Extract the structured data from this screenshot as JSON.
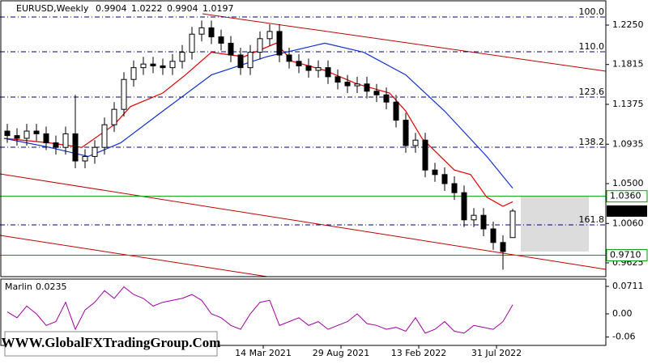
{
  "chart_data": {
    "type": "candlestick",
    "symbol": "EURUSD,Weekly",
    "ohlc_header": [
      0.9904,
      1.0222,
      0.9904,
      1.0197
    ],
    "xlim": [
      -1.25,
      185.75
    ],
    "xticks": [
      {
        "value": 80,
        "label": "14 Mar 2021"
      },
      {
        "value": 104,
        "label": "29 Aug 2021"
      },
      {
        "value": 128,
        "label": "13 Feb 2022"
      },
      {
        "value": 152,
        "label": "31 Jul 2022"
      }
    ],
    "ylim": [
      0.9473,
      1.2527
    ],
    "yticks": [
      {
        "value": 1.225,
        "label": "1.2250"
      },
      1.1815,
      1.1375,
      1.0935,
      {
        "value": 1.05,
        "label": "1.0500"
      },
      {
        "value": 1.006,
        "label": "1.0060"
      },
      0.9625
    ],
    "candles": {
      "x": [
        1,
        4,
        7,
        10,
        13,
        16,
        19,
        22,
        25,
        28,
        31,
        34,
        37,
        40,
        43,
        46,
        49,
        52,
        55,
        58,
        61,
        64,
        67,
        70,
        73,
        76,
        79,
        82,
        85,
        88,
        91,
        94,
        97,
        100,
        103,
        106,
        109,
        112,
        115,
        118,
        121,
        124,
        127,
        130,
        133,
        136,
        139,
        142,
        145,
        148,
        151,
        154,
        157
      ],
      "open": [
        1.108,
        1.103,
        1.1,
        1.108,
        1.105,
        1.095,
        1.09,
        1.105,
        1.075,
        1.08,
        1.09,
        1.115,
        1.132,
        1.165,
        1.178,
        1.182,
        1.18,
        1.178,
        1.185,
        1.195,
        1.215,
        1.222,
        1.212,
        1.205,
        1.192,
        1.178,
        1.195,
        1.21,
        1.218,
        1.192,
        1.185,
        1.18,
        1.175,
        1.178,
        1.168,
        1.162,
        1.158,
        1.16,
        1.152,
        1.148,
        1.14,
        1.12,
        1.092,
        1.098,
        1.065,
        1.06,
        1.05,
        1.04,
        1.01,
        1.015,
        1.0,
        0.985,
        0.9904
      ],
      "high": [
        1.116,
        1.111,
        1.116,
        1.116,
        1.113,
        1.103,
        1.113,
        1.148,
        1.088,
        1.098,
        1.123,
        1.14,
        1.173,
        1.186,
        1.19,
        1.19,
        1.188,
        1.193,
        1.203,
        1.223,
        1.23,
        1.23,
        1.22,
        1.213,
        1.2,
        1.203,
        1.218,
        1.226,
        1.226,
        1.2,
        1.193,
        1.188,
        1.186,
        1.186,
        1.176,
        1.17,
        1.168,
        1.168,
        1.16,
        1.156,
        1.148,
        1.128,
        1.106,
        1.106,
        1.073,
        1.068,
        1.058,
        1.048,
        1.023,
        1.023,
        1.008,
        0.993,
        1.0222
      ],
      "low": [
        1.095,
        1.092,
        1.092,
        1.097,
        1.087,
        1.082,
        1.082,
        1.067,
        1.067,
        1.072,
        1.082,
        1.107,
        1.124,
        1.157,
        1.17,
        1.172,
        1.17,
        1.17,
        1.177,
        1.187,
        1.207,
        1.204,
        1.197,
        1.184,
        1.17,
        1.17,
        1.187,
        1.202,
        1.184,
        1.177,
        1.172,
        1.167,
        1.167,
        1.16,
        1.154,
        1.15,
        1.15,
        1.144,
        1.14,
        1.132,
        1.112,
        1.084,
        1.084,
        1.057,
        1.052,
        1.042,
        1.032,
        1.002,
        1.002,
        0.992,
        0.977,
        0.955,
        0.9904
      ],
      "close": [
        1.103,
        1.1,
        1.108,
        1.105,
        1.095,
        1.09,
        1.105,
        1.075,
        1.08,
        1.09,
        1.115,
        1.132,
        1.165,
        1.178,
        1.182,
        1.18,
        1.178,
        1.185,
        1.195,
        1.215,
        1.222,
        1.212,
        1.205,
        1.192,
        1.178,
        1.195,
        1.21,
        1.218,
        1.192,
        1.185,
        1.18,
        1.175,
        1.178,
        1.168,
        1.162,
        1.158,
        1.16,
        1.152,
        1.148,
        1.14,
        1.12,
        1.092,
        1.098,
        1.065,
        1.06,
        1.05,
        1.04,
        1.01,
        1.015,
        1.0,
        0.985,
        0.975,
        1.0197
      ]
    },
    "moving_averages": [
      {
        "color": "#e00000",
        "x": [
          0,
          14,
          24,
          34,
          39,
          49,
          56,
          64,
          74,
          84,
          89,
          99,
          109,
          119,
          124,
          129,
          139,
          144,
          149,
          154,
          157
        ],
        "values": [
          1.1,
          1.095,
          1.09,
          1.115,
          1.135,
          1.15,
          1.17,
          1.195,
          1.19,
          1.205,
          1.185,
          1.175,
          1.16,
          1.15,
          1.13,
          1.1,
          1.065,
          1.06,
          1.035,
          1.025,
          1.03
        ]
      },
      {
        "color": "#1030d0",
        "x": [
          0,
          14,
          26,
          36,
          49,
          64,
          81,
          99,
          111,
          124,
          136,
          149,
          157
        ],
        "values": [
          1.1,
          1.09,
          1.08,
          1.095,
          1.13,
          1.17,
          1.19,
          1.205,
          1.195,
          1.17,
          1.13,
          1.08,
          1.045
        ]
      }
    ],
    "fib_levels": [
      {
        "label": "100.0",
        "value": 1.2339
      },
      {
        "label": "110.0",
        "value": 1.1955
      },
      {
        "label": "123.6",
        "value": 1.1455
      },
      {
        "label": "138.2",
        "value": 1.0902
      },
      {
        "label": "161.8",
        "value": 1.0045
      }
    ],
    "levels": [
      {
        "value": 1.036,
        "label": "1.0360",
        "color": "#00a000"
      },
      {
        "value": 0.971,
        "label": "0.9710",
        "color": "#00a000"
      }
    ],
    "last_price": 1.0197,
    "indicator": {
      "name": "Marlin",
      "current": 0.0235,
      "color": "#a000a0",
      "ylim": [
        -0.0816,
        0.09
      ],
      "yticks": [
        0.0711,
        {
          "value": 0,
          "label": "0.00"
        },
        {
          "value": -0.06,
          "label": "-0.06"
        }
      ],
      "values": [
        0.005,
        -0.01,
        0.02,
        0.0,
        -0.03,
        -0.02,
        0.03,
        -0.04,
        0.01,
        0.03,
        0.06,
        0.04,
        0.07,
        0.05,
        0.04,
        0.02,
        0.03,
        0.035,
        0.04,
        0.05,
        0.035,
        0.0,
        -0.01,
        -0.03,
        -0.04,
        0.0,
        0.03,
        0.035,
        -0.03,
        -0.02,
        -0.01,
        -0.03,
        -0.02,
        -0.04,
        -0.03,
        -0.02,
        0.0,
        -0.025,
        -0.03,
        -0.04,
        -0.035,
        -0.045,
        -0.01,
        -0.05,
        -0.04,
        -0.02,
        -0.045,
        -0.05,
        -0.03,
        -0.035,
        -0.04,
        -0.02,
        0.0235
      ]
    },
    "watermark": "WWW.GlobalFXTradingGroup.Com"
  }
}
